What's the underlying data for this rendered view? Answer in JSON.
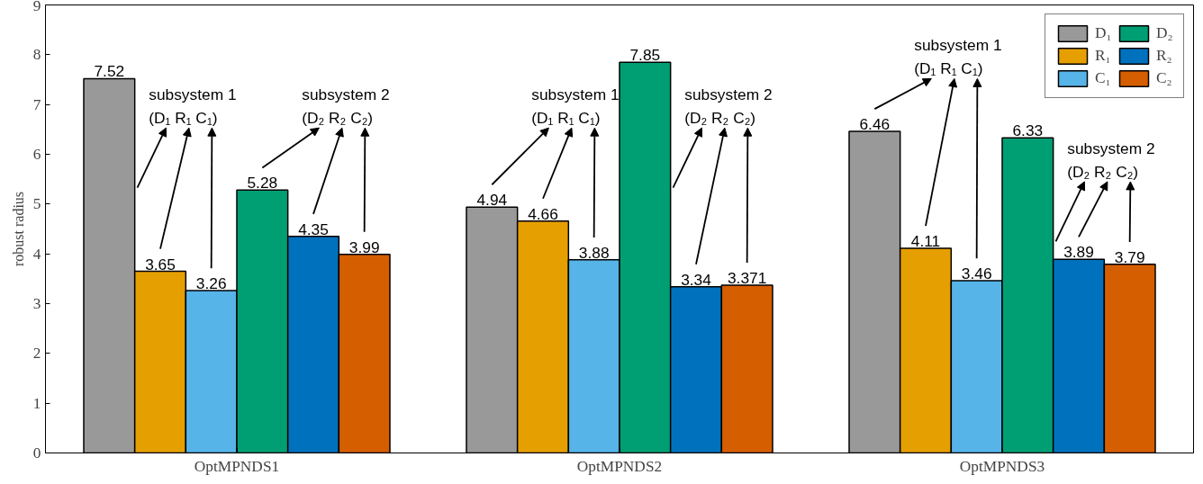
{
  "chart_data": {
    "type": "bar",
    "ylabel": "robust radius",
    "categories": [
      "OptMPNDS1",
      "OptMPNDS2",
      "OptMPNDS3"
    ],
    "series": [
      {
        "name": "D₁",
        "color": "#999999",
        "values": [
          7.52,
          4.94,
          6.46
        ]
      },
      {
        "name": "R₁",
        "color": "#e69f00",
        "values": [
          3.65,
          4.66,
          4.11
        ]
      },
      {
        "name": "C₁",
        "color": "#56b4e9",
        "values": [
          3.26,
          3.88,
          3.46
        ]
      },
      {
        "name": "D₂",
        "color": "#009e73",
        "values": [
          5.28,
          7.85,
          6.33
        ]
      },
      {
        "name": "R₂",
        "color": "#0072bd",
        "values": [
          4.35,
          3.34,
          3.89
        ]
      },
      {
        "name": "C₂",
        "color": "#d55e00",
        "values": [
          3.99,
          3.371,
          3.79
        ]
      }
    ],
    "value_labels": [
      [
        "7.52",
        "4.94",
        "6.46"
      ],
      [
        "3.65",
        "4.66",
        "4.11"
      ],
      [
        "3.26",
        "3.88",
        "3.46"
      ],
      [
        "5.28",
        "7.85",
        "6.33"
      ],
      [
        "4.35",
        "3.34",
        "3.89"
      ],
      [
        "3.99",
        "3.371",
        "3.79"
      ]
    ],
    "annotations": [
      "subsystem 1\n(D₁ R₁ C₁)",
      "subsystem 2\n(D₂ R₂ C₂)",
      "subsystem 1\n(D₁ R₁ C₁)",
      "subsystem 2\n(D₂ R₂ C₂)",
      "subsystem 1\n(D₁ R₁ C₁)",
      "subsystem 2\n(D₂ R₂ C₂)"
    ],
    "ylim": [
      0,
      9
    ],
    "yticks": [
      0,
      1,
      2,
      3,
      4,
      5,
      6,
      7,
      8,
      9
    ],
    "grid": false,
    "legend": "top right"
  }
}
